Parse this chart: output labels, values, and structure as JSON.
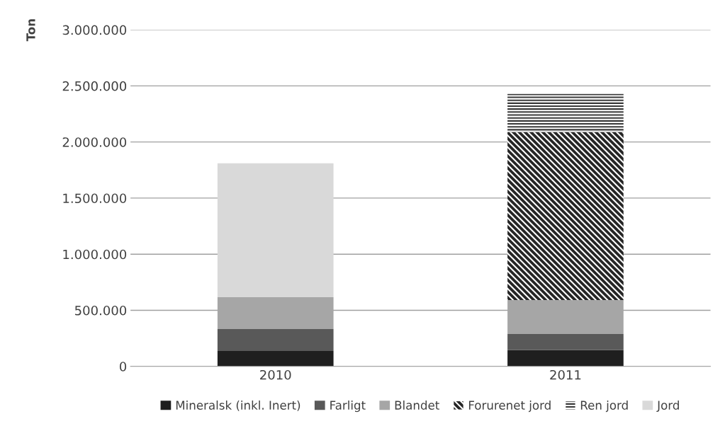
{
  "chart_data": {
    "type": "bar",
    "stacked": true,
    "ylabel": "Ton",
    "categories": [
      "2010",
      "2011"
    ],
    "series": [
      {
        "name": "Mineralsk (inkl. Inert)",
        "color": "#1f1f1f",
        "values": [
          137000,
          145000
        ]
      },
      {
        "name": "Farligt",
        "color": "#595959",
        "values": [
          196000,
          144000
        ]
      },
      {
        "name": "Blandet",
        "color": "#a6a6a6",
        "values": [
          283000,
          302000
        ]
      },
      {
        "name": "Forurenet jord",
        "color": "#262626",
        "values": [
          0,
          1497000
        ]
      },
      {
        "name": "Ren jord",
        "color": "#3a3a3a",
        "values": [
          0,
          340000
        ]
      },
      {
        "name": "Jord",
        "color": "#d9d9d9",
        "values": [
          1195000,
          0
        ]
      }
    ],
    "ylim": [
      0,
      3000000
    ],
    "yticks": [
      {
        "value": 0,
        "label": "0"
      },
      {
        "value": 500000,
        "label": "500.000"
      },
      {
        "value": 1000000,
        "label": "1.000.000"
      },
      {
        "value": 1500000,
        "label": "1.500.000"
      },
      {
        "value": 2000000,
        "label": "2.000.000"
      },
      {
        "value": 2500000,
        "label": "2.500.000"
      },
      {
        "value": 3000000,
        "label": "3.000.000"
      }
    ],
    "grid": "y",
    "legend": "bottom"
  }
}
